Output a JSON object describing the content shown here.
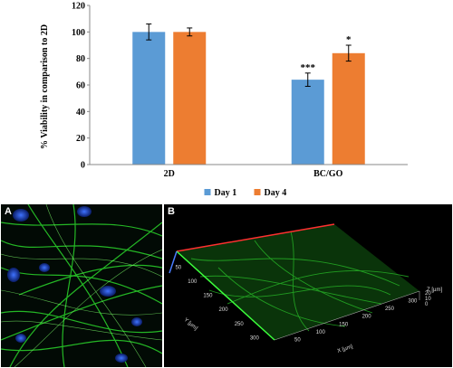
{
  "chart_data": {
    "type": "bar",
    "categories": [
      "2D",
      "BC/GO"
    ],
    "series": [
      {
        "name": "Day 1",
        "values": [
          100,
          64
        ],
        "errors": [
          6,
          5
        ],
        "color": "#5b9bd5"
      },
      {
        "name": "Day 4",
        "values": [
          100,
          84
        ],
        "errors": [
          3,
          6
        ],
        "color": "#ed7d31"
      }
    ],
    "ylabel": "% Viability in comparison to 2D",
    "ylim": [
      0,
      120
    ],
    "yticks": [
      "0",
      "20",
      "40",
      "60",
      "80",
      "100",
      "120"
    ],
    "annotations": [
      {
        "category": "BC/GO",
        "series": "Day 1",
        "text": "***"
      },
      {
        "category": "BC/GO",
        "series": "Day 4",
        "text": "*"
      }
    ],
    "legend": "bottom-center",
    "grid": false
  },
  "panels": {
    "a": {
      "label": "A"
    },
    "b": {
      "label": "B",
      "y_axis_label": "Y [µm]",
      "x_axis_label": "X [µm]",
      "z_axis_label": "Z [µm]",
      "y_ticks": [
        "50",
        "100",
        "150",
        "200",
        "250",
        "300"
      ],
      "x_ticks": [
        "50",
        "100",
        "150",
        "200",
        "250",
        "300"
      ],
      "z_ticks": [
        "0",
        "10",
        "20"
      ]
    }
  },
  "colors": {
    "day1": "#5b9bd5",
    "day4": "#ed7d31",
    "stain_green": "#2ecc2e",
    "stain_blue": "#2a5bd7"
  }
}
